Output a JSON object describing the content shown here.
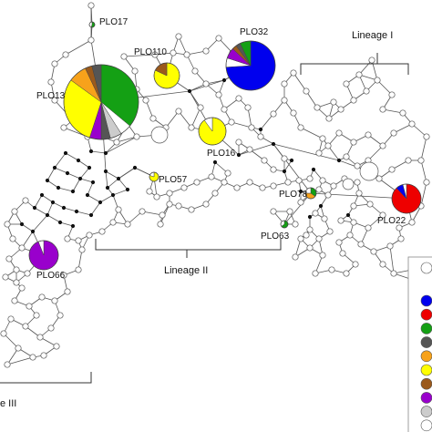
{
  "colors": {
    "blue": "#0000ee",
    "red": "#ee0000",
    "green": "#14a014",
    "dark_gray": "#555555",
    "orange": "#f7a21b",
    "yellow": "#ffff00",
    "brown": "#9b5a1c",
    "purple": "#9900cc",
    "light_gray": "#cccccc",
    "white": "#ffffff",
    "median_vector": "#111111"
  },
  "lineages": [
    {
      "id": "lineage-1",
      "label": "Lineage I"
    },
    {
      "id": "lineage-2",
      "label": "Lineage II"
    },
    {
      "id": "lineage-3",
      "label": "e III"
    }
  ],
  "haplotypes": [
    {
      "id": "PLO17",
      "label": "PLO17",
      "slices": [
        {
          "color": "green",
          "share": 0.55
        },
        {
          "color": "white",
          "share": 0.45
        }
      ]
    },
    {
      "id": "PLO110",
      "label": "PLO110",
      "slices": [
        {
          "color": "yellow",
          "share": 0.82
        },
        {
          "color": "brown",
          "share": 0.18
        }
      ]
    },
    {
      "id": "PLO32",
      "label": "PLO32",
      "slices": [
        {
          "color": "blue",
          "share": 0.74
        },
        {
          "color": "white",
          "share": 0.06
        },
        {
          "color": "purple",
          "share": 0.07
        },
        {
          "color": "brown",
          "share": 0.03
        },
        {
          "color": "dark_gray",
          "share": 0.03
        },
        {
          "color": "green",
          "share": 0.07
        }
      ]
    },
    {
      "id": "PLO13",
      "label": "PLO13",
      "slices": [
        {
          "color": "green",
          "share": 0.36
        },
        {
          "color": "white",
          "share": 0.05
        },
        {
          "color": "light_gray",
          "share": 0.05
        },
        {
          "color": "dark_gray",
          "share": 0.04
        },
        {
          "color": "purple",
          "share": 0.05
        },
        {
          "color": "yellow",
          "share": 0.3
        },
        {
          "color": "orange",
          "share": 0.08
        },
        {
          "color": "brown",
          "share": 0.03
        },
        {
          "color": "dark_gray",
          "share": 0.04
        }
      ]
    },
    {
      "id": "PLO16",
      "label": "PLO16",
      "slices": [
        {
          "color": "yellow",
          "share": 0.9
        },
        {
          "color": "white",
          "share": 0.1
        }
      ]
    },
    {
      "id": "PLO57",
      "label": "PLO57",
      "slices": [
        {
          "color": "yellow",
          "share": 0.8
        },
        {
          "color": "white",
          "share": 0.2
        }
      ]
    },
    {
      "id": "PLO78",
      "label": "PLO78",
      "slices": [
        {
          "color": "green",
          "share": 0.35
        },
        {
          "color": "orange",
          "share": 0.4
        },
        {
          "color": "white",
          "share": 0.25
        }
      ]
    },
    {
      "id": "PLO63",
      "label": "PLO63",
      "slices": [
        {
          "color": "green",
          "share": 0.65
        },
        {
          "color": "white",
          "share": 0.35
        }
      ]
    },
    {
      "id": "PLO22",
      "label": "PLO22",
      "slices": [
        {
          "color": "red",
          "share": 0.88
        },
        {
          "color": "blue",
          "share": 0.08
        },
        {
          "color": "white",
          "share": 0.04
        }
      ]
    },
    {
      "id": "PLO66",
      "label": "PLO66",
      "slices": [
        {
          "color": "purple",
          "share": 0.94
        },
        {
          "color": "white",
          "share": 0.06
        }
      ]
    }
  ],
  "legend": {
    "swatches": [
      "white",
      "blue",
      "red",
      "green",
      "dark_gray",
      "orange",
      "yellow",
      "brown",
      "purple",
      "light_gray",
      "white"
    ]
  }
}
